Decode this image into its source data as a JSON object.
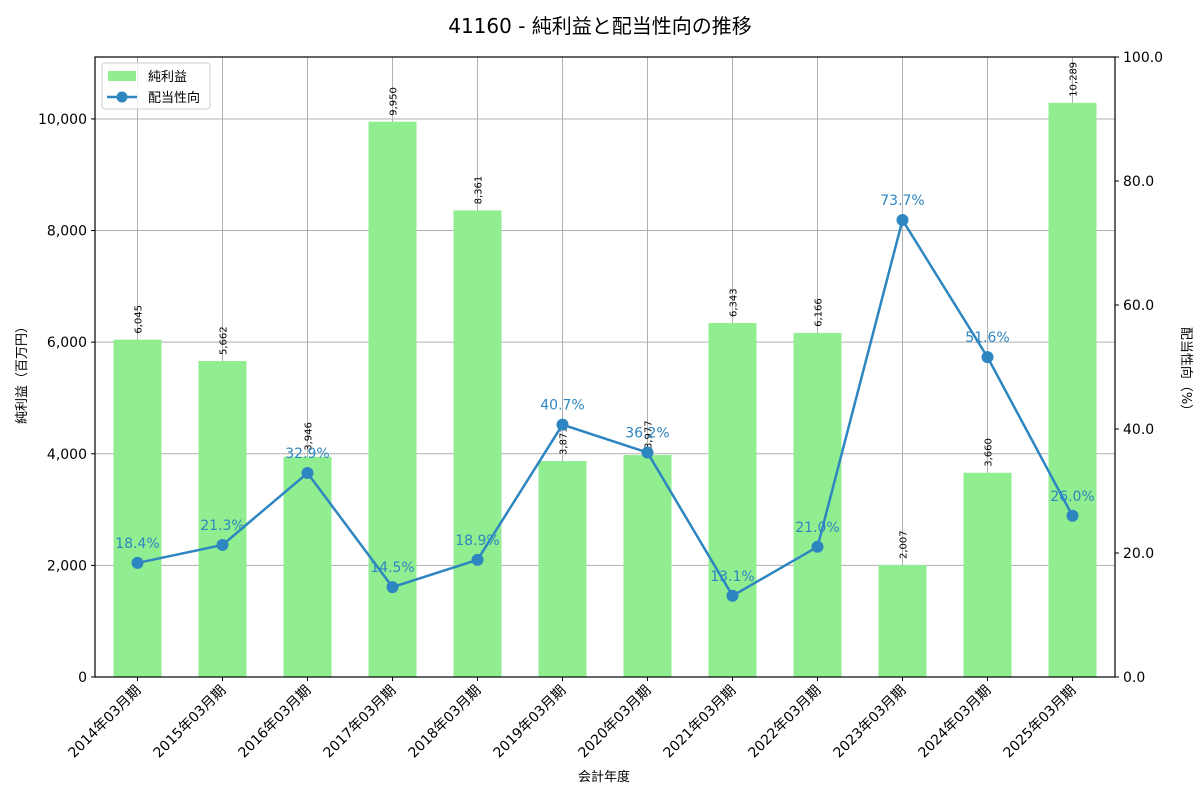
{
  "chart_data": {
    "type": "bar+line",
    "title": "41160 - 純利益と配当性向の推移",
    "xlabel": "会計年度",
    "ylabel_left": "純利益（百万円）",
    "ylabel_right": "配当性向（%）",
    "categories": [
      "2014年03月期",
      "2015年03月期",
      "2016年03月期",
      "2017年03月期",
      "2018年03月期",
      "2019年03月期",
      "2020年03月期",
      "2021年03月期",
      "2022年03月期",
      "2023年03月期",
      "2024年03月期",
      "2025年03月期"
    ],
    "series": [
      {
        "name": "純利益",
        "type": "bar",
        "axis": "left",
        "color": "#90ee90",
        "values": [
          6045,
          5662,
          3946,
          9950,
          8361,
          3871,
          3977,
          6343,
          6166,
          2007,
          3660,
          10289
        ],
        "labels": [
          "6,045",
          "5,662",
          "3,946",
          "9,950",
          "8,361",
          "3,871",
          "3,977",
          "6,343",
          "6,166",
          "2,007",
          "3,660",
          "10,289"
        ]
      },
      {
        "name": "配当性向",
        "type": "line",
        "axis": "right",
        "color": "#2e86c1",
        "values": [
          18.4,
          21.3,
          32.9,
          14.5,
          18.9,
          40.7,
          36.2,
          13.1,
          21.0,
          73.7,
          51.6,
          26.0
        ],
        "labels": [
          "18.4%",
          "21.3%",
          "32.9%",
          "14.5%",
          "18.9%",
          "40.7%",
          "36.2%",
          "13.1%",
          "21.0%",
          "73.7%",
          "51.6%",
          "26.0%"
        ]
      }
    ],
    "ylim_left": [
      0,
      11110
    ],
    "yticks_left": [
      0,
      2000,
      4000,
      6000,
      8000,
      10000
    ],
    "ytick_labels_left": [
      "0",
      "2,000",
      "4,000",
      "6,000",
      "8,000",
      "10,000"
    ],
    "ylim_right": [
      0,
      100
    ],
    "yticks_right": [
      0,
      20,
      40,
      60,
      80,
      100
    ],
    "ytick_labels_right": [
      "0.0",
      "20.0",
      "40.0",
      "60.0",
      "80.0",
      "100.0"
    ],
    "grid": true,
    "legend_position": "upper left"
  },
  "legend": {
    "items": [
      {
        "label": "純利益"
      },
      {
        "label": "配当性向"
      }
    ]
  }
}
